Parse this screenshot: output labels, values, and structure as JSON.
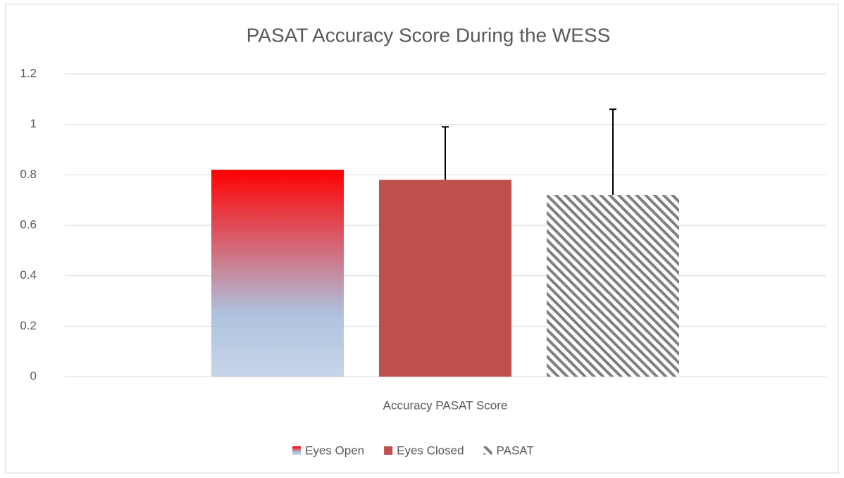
{
  "chart_data": {
    "type": "bar",
    "title": "PASAT Accuracy Score During the WESS",
    "categories": [
      "Accuracy PASAT Score"
    ],
    "series": [
      {
        "name": "Eyes Open",
        "fill": "gradient",
        "color": [
          "#ff0000",
          "#aec3df"
        ],
        "values": [
          0.82
        ],
        "errors": [
          null
        ]
      },
      {
        "name": "Eyes Closed",
        "fill": "solid",
        "color": "#c0504d",
        "values": [
          0.78
        ],
        "errors": [
          0.21
        ]
      },
      {
        "name": "PASAT",
        "fill": "hatch",
        "color": "#7f7f7f",
        "values": [
          0.72
        ],
        "errors": [
          0.34
        ]
      }
    ],
    "ylim": [
      0,
      1.2
    ],
    "yticks": [
      0,
      0.2,
      0.4,
      0.6,
      0.8,
      1,
      1.2
    ],
    "grid": true,
    "legend": "bottom"
  }
}
